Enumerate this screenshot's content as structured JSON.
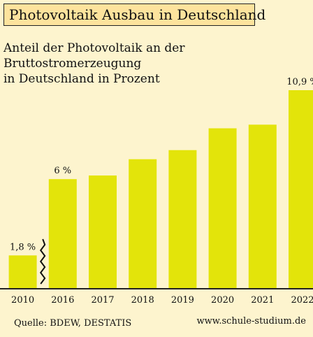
{
  "title": "Photovoltaik Ausbau in Deutschland",
  "subtitle_line1": "Anteil der Photovoltaik an der Bruttostromerzeugung",
  "subtitle_line2": "in Deutschland in Prozent",
  "source": "Quelle: BDEW, DESTATIS",
  "website": "www.schule-studium.de",
  "colors": {
    "background": "#fdf4ce",
    "bar": "#e3e40a",
    "title_box": "#fde39d"
  },
  "chart_data": {
    "type": "bar",
    "categories": [
      "2010",
      "2016",
      "2017",
      "2018",
      "2019",
      "2020",
      "2021",
      "2022"
    ],
    "values": [
      1.8,
      6.0,
      6.2,
      7.1,
      7.6,
      8.8,
      9.0,
      10.9
    ],
    "data_labels": [
      "1,8 %",
      "6 %",
      "",
      "",
      "",
      "",
      "",
      "10,9 %"
    ],
    "axis_break_after": "2010",
    "ylim": [
      0,
      11
    ]
  }
}
